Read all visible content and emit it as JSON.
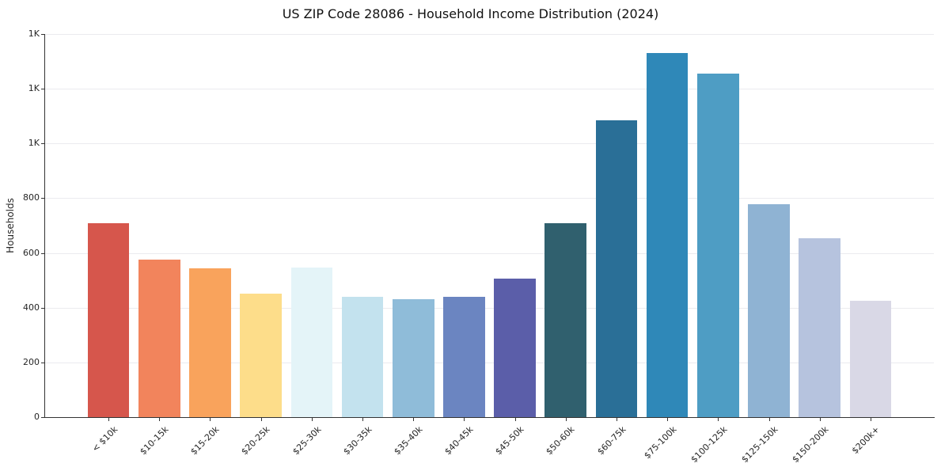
{
  "chart_data": {
    "type": "bar",
    "title": "US ZIP Code 28086 - Household Income Distribution (2024)",
    "xlabel": "",
    "ylabel": "Households",
    "categories": [
      "< $10k",
      "$10-15k",
      "$15-20k",
      "$20-25k",
      "$25-30k",
      "$30-35k",
      "$35-40k",
      "$40-45k",
      "$45-50k",
      "$50-60k",
      "$60-75k",
      "$75-100k",
      "$100-125k",
      "$125-150k",
      "$150-200k",
      "$200k+"
    ],
    "values": [
      710,
      575,
      544,
      451,
      547,
      440,
      430,
      440,
      506,
      709,
      1085,
      1332,
      1255,
      778,
      654,
      425
    ],
    "bar_colors": [
      "#d6564c",
      "#f2845c",
      "#f9a35c",
      "#fddd8a",
      "#e4f4f8",
      "#c3e2ee",
      "#8fbcd9",
      "#6b85c1",
      "#5b5ea9",
      "#30606e",
      "#2a6f97",
      "#2f88b8",
      "#4e9dc4",
      "#8fb3d3",
      "#b6c3de",
      "#d9d8e6"
    ],
    "ylim": [
      0,
      1400
    ],
    "yticks": [
      {
        "value": 0,
        "label": "0"
      },
      {
        "value": 200,
        "label": "200"
      },
      {
        "value": 400,
        "label": "400"
      },
      {
        "value": 600,
        "label": "600"
      },
      {
        "value": 800,
        "label": "800"
      },
      {
        "value": 1000,
        "label": "1K"
      },
      {
        "value": 1200,
        "label": "1K"
      },
      {
        "value": 1400,
        "label": "1K"
      }
    ],
    "grid": "horizontal",
    "legend": null
  }
}
